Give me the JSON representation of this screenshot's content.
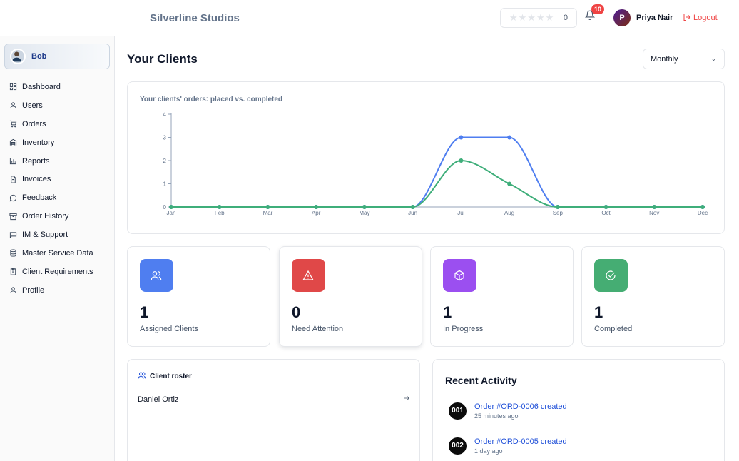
{
  "header": {
    "brand": "Silverline Studios",
    "rating_count": "0",
    "notification_count": "10",
    "user_initial": "P",
    "user_name": "Priya Nair",
    "logout_label": "Logout"
  },
  "sidebar": {
    "profile_name": "Bob",
    "items": [
      {
        "label": "Dashboard",
        "icon": "grid-icon"
      },
      {
        "label": "Users",
        "icon": "user-icon"
      },
      {
        "label": "Orders",
        "icon": "cart-icon"
      },
      {
        "label": "Inventory",
        "icon": "warehouse-icon"
      },
      {
        "label": "Reports",
        "icon": "bar-chart-icon"
      },
      {
        "label": "Invoices",
        "icon": "file-icon"
      },
      {
        "label": "Feedback",
        "icon": "message-circle-icon"
      },
      {
        "label": "Order History",
        "icon": "archive-icon"
      },
      {
        "label": "IM & Support",
        "icon": "message-square-icon"
      },
      {
        "label": "Master Service Data",
        "icon": "database-icon"
      },
      {
        "label": "Client Requirements",
        "icon": "clipboard-icon"
      },
      {
        "label": "Profile",
        "icon": "user-icon"
      }
    ]
  },
  "main": {
    "title": "Your Clients",
    "period_select": "Monthly"
  },
  "chart_data": {
    "type": "line",
    "title": "Your clients' orders: placed vs. completed",
    "categories": [
      "Jan",
      "Feb",
      "Mar",
      "Apr",
      "May",
      "Jun",
      "Jul",
      "Aug",
      "Sep",
      "Oct",
      "Nov",
      "Dec"
    ],
    "series": [
      {
        "color": "#4f7ef0",
        "values": [
          0,
          0,
          0,
          0,
          0,
          0,
          3,
          3,
          0,
          0,
          0,
          0
        ]
      },
      {
        "color": "#3fae7a",
        "values": [
          0,
          0,
          0,
          0,
          0,
          0,
          2,
          1,
          0,
          0,
          0,
          0
        ]
      }
    ],
    "ylim": [
      0,
      4
    ],
    "yticks": [
      "0",
      "1",
      "2",
      "3",
      "4"
    ],
    "grid": false
  },
  "stats": [
    {
      "value": "1",
      "label": "Assigned Clients",
      "color": "#4f7ef0",
      "icon": "users-icon"
    },
    {
      "value": "0",
      "label": "Need Attention",
      "color": "#e04848",
      "icon": "alert-triangle-icon"
    },
    {
      "value": "1",
      "label": "In Progress",
      "color": "#9b4ff0",
      "icon": "package-icon"
    },
    {
      "value": "1",
      "label": "Completed",
      "color": "#45ad73",
      "icon": "check-circle-icon"
    }
  ],
  "roster": {
    "title": "Client roster",
    "clients": [
      "Daniel Ortiz"
    ]
  },
  "activity": {
    "title": "Recent Activity",
    "items": [
      {
        "badge": "001",
        "text": "Order #ORD-0006 created",
        "time": "25 minutes ago"
      },
      {
        "badge": "002",
        "text": "Order #ORD-0005 created",
        "time": "1 day ago"
      }
    ]
  }
}
